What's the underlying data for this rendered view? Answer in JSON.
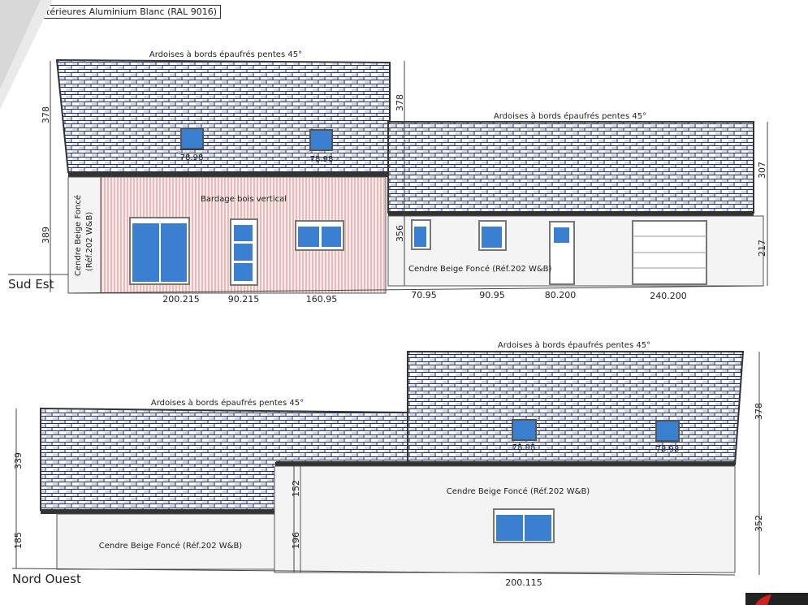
{
  "header_note": "térieures Aluminium Blanc (RAL 9016)",
  "colors": {
    "glass": "#3b7fd0",
    "slate_line": "#1e2a5a",
    "eave": "#333333",
    "wall": "#f4f4f4",
    "cladding_line": "#d98a8a"
  },
  "sud_est": {
    "title": "Sud Est",
    "roof_label_left": "Ardoises à bords épaufrés pentes 45°",
    "roof_label_right": "Ardoises à bords épaufrés pentes 45°",
    "cladding_label": "Bardage bois vertical",
    "plaster_label_vertical_1": "Cendre Beige Foncé",
    "plaster_label_vertical_2": "(Réf.202 W&B)",
    "plaster_label": "Cendre Beige Foncé (Réf.202 W&B)",
    "skylights": [
      "78.98",
      "78.98"
    ],
    "dims_left": [
      "378",
      "389"
    ],
    "dims_middle": [
      "378",
      "356"
    ],
    "dims_right": [
      "307",
      "217"
    ],
    "openings": [
      "200.215",
      "90.215",
      "160.95",
      "70.95",
      "90.95",
      "80.200",
      "240.200"
    ]
  },
  "nord_ouest": {
    "title": "Nord Ouest",
    "roof_label_left": "Ardoises à bords épaufrés pentes 45°",
    "roof_label_right": "Ardoises à bords épaufrés pentes 45°",
    "plaster_label_left": "Cendre Beige Foncé (Réf.202 W&B)",
    "plaster_label_right": "Cendre Beige Foncé (Réf.202 W&B)",
    "skylights": [
      "78.98",
      "78.98"
    ],
    "dims_left": [
      "339",
      "185"
    ],
    "dims_middle": [
      "152",
      "196"
    ],
    "dims_right": [
      "378",
      "352"
    ],
    "openings": [
      "200.115"
    ]
  }
}
